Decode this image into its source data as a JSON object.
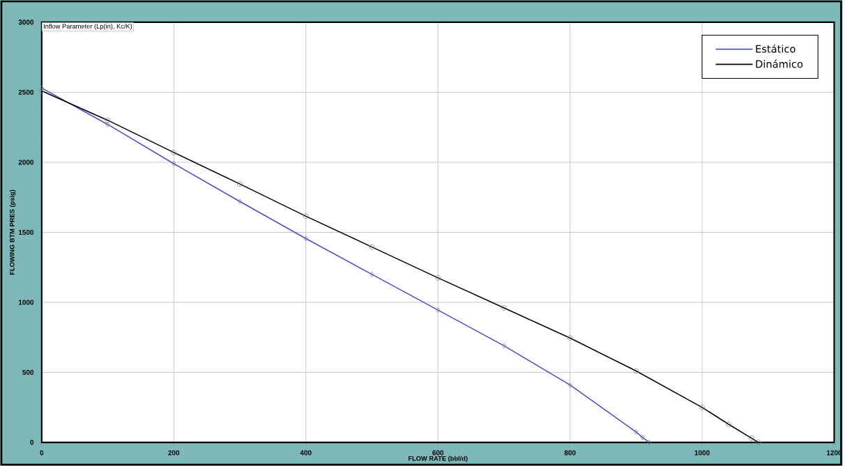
{
  "chart_data": {
    "type": "line",
    "xlabel": "FLOW RATE      (bbl/d)",
    "ylabel": "FLOWING BTM PRES      (psig)",
    "annotations": [
      "Inflow Parameter (Lp(in),  Kc/K)"
    ],
    "series": [
      {
        "name": "Estático",
        "color": "#4b52c2",
        "marker": "diamond",
        "x": [
          0,
          100,
          200,
          300,
          400,
          500,
          600,
          700,
          800,
          900,
          910,
          920
        ],
        "values": [
          2530,
          2270,
          1990,
          1720,
          1455,
          1200,
          945,
          690,
          410,
          75,
          35,
          0
        ]
      },
      {
        "name": "Dinámico",
        "color": "#000000",
        "marker": "circle",
        "x": [
          0,
          100,
          200,
          300,
          400,
          500,
          600,
          700,
          800,
          900,
          1000,
          1040,
          1075,
          1085
        ],
        "values": [
          2510,
          2300,
          2070,
          1845,
          1615,
          1395,
          1175,
          960,
          745,
          510,
          250,
          130,
          30,
          0
        ]
      }
    ],
    "xlim": [
      0,
      1200
    ],
    "ylim": [
      0,
      3000
    ],
    "xticks": [
      0,
      200,
      400,
      600,
      800,
      1000,
      1200
    ],
    "yticks": [
      0,
      500,
      1000,
      1500,
      2000,
      2500,
      3000
    ],
    "grid": true,
    "legend": "top right",
    "line_style": "solid"
  }
}
